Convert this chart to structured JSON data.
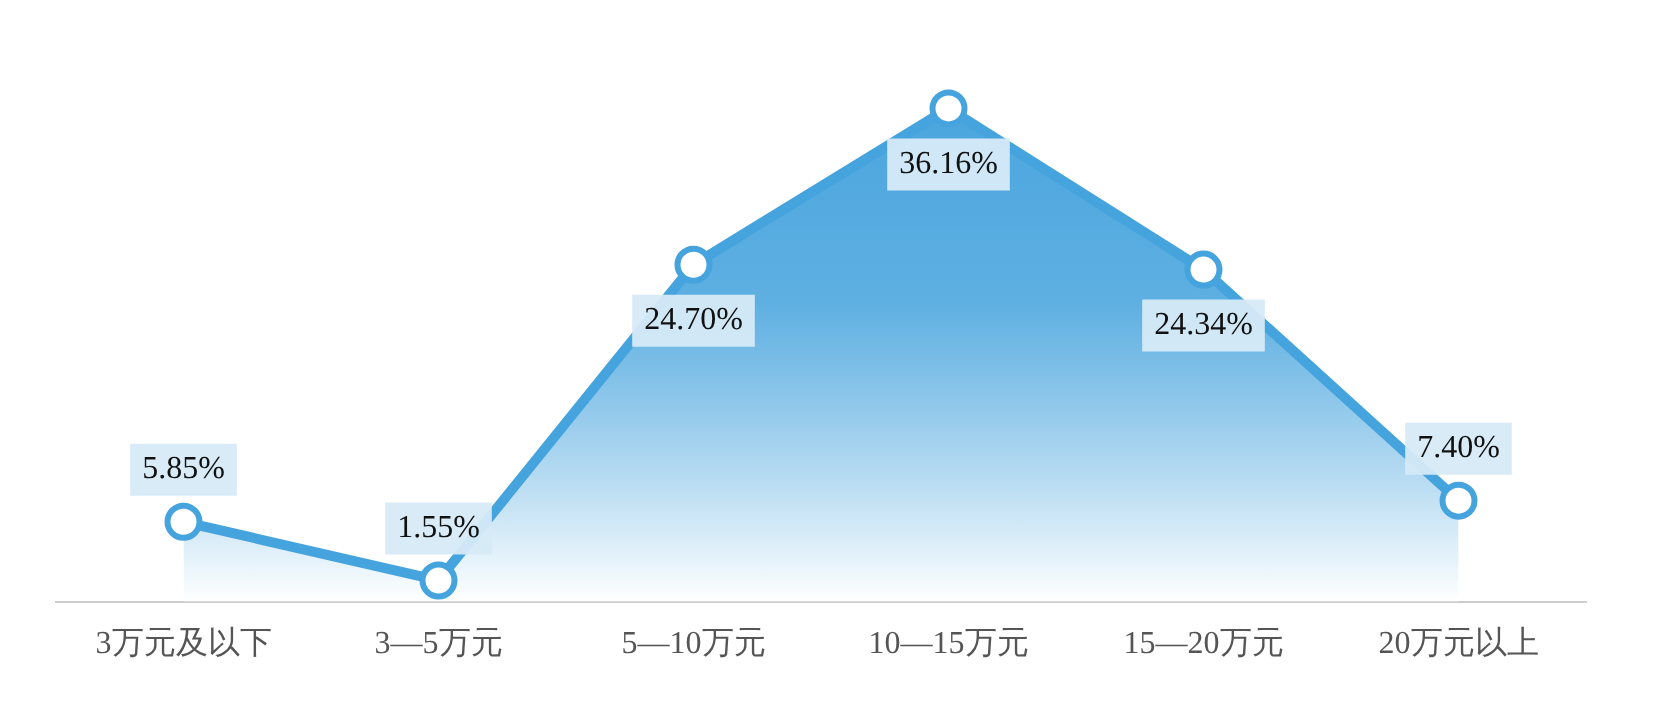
{
  "chart_data": {
    "type": "area",
    "categories": [
      "3万元及以下",
      "3—5万元",
      "5—10万元",
      "10—15万元",
      "15—20万元",
      "20万元以上"
    ],
    "series": [
      {
        "color": "#45a3dd",
        "values": [
          5.85,
          1.55,
          24.7,
          36.16,
          24.34,
          7.4
        ],
        "value_labels": [
          "5.85%",
          "1.55%",
          "24.70%",
          "36.16%",
          "24.34%",
          "7.40%"
        ]
      }
    ],
    "marker": "circle",
    "grid": false,
    "legend": false,
    "tick_labels": "x"
  }
}
